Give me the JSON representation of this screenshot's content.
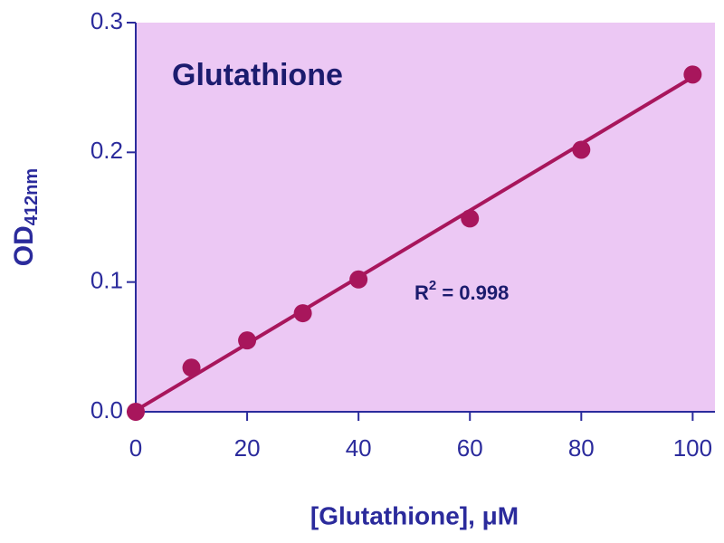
{
  "chart_data": {
    "type": "scatter",
    "title": "Glutathione",
    "x_label": "[Glutathione], μM",
    "y_label": {
      "main": "OD",
      "sub": "412nm"
    },
    "annotation": {
      "base": "R",
      "sup": "2",
      "rest": " = 0.998"
    },
    "x": [
      0,
      10,
      20,
      30,
      40,
      60,
      80,
      100
    ],
    "values": [
      0.0,
      0.034,
      0.055,
      0.076,
      0.102,
      0.149,
      0.202,
      0.26
    ],
    "fit": {
      "x": [
        0,
        100
      ],
      "values": [
        0.001,
        0.258
      ]
    },
    "color": "#a8165c",
    "axis_color": "#2b2b9c",
    "background": "#ecc8f4",
    "xlim": [
      0,
      104
    ],
    "xticks": [
      0,
      20,
      40,
      60,
      80,
      100
    ],
    "ylim": [
      0,
      0.3
    ],
    "yticks": [
      {
        "value": 0,
        "label": "0.0"
      },
      0.1,
      0.2,
      0.3
    ]
  }
}
